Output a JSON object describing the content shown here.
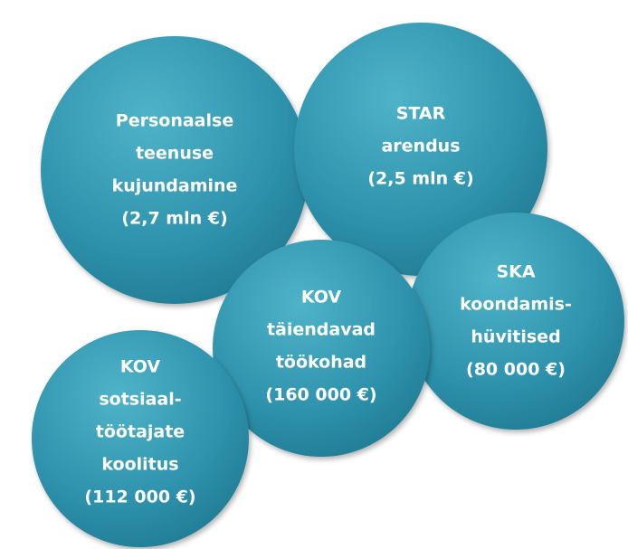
{
  "nodes": [
    {
      "lines": [
        "Personaalse",
        "teenuse",
        "kujundamine",
        "(2,7 mln €)"
      ]
    },
    {
      "lines": [
        "STAR",
        "arendus",
        "(2,5 mln €)"
      ]
    },
    {
      "lines": [
        "SKA",
        "koondamis-",
        "hüvitised",
        "(80 000 €)"
      ]
    },
    {
      "lines": [
        "KOV",
        "täiendavad",
        "töökohad",
        "(160 000 €)"
      ]
    },
    {
      "lines": [
        "KOV",
        "sotsiaal-",
        "töötajate",
        "koolitus",
        "(112 000 €)"
      ]
    }
  ]
}
